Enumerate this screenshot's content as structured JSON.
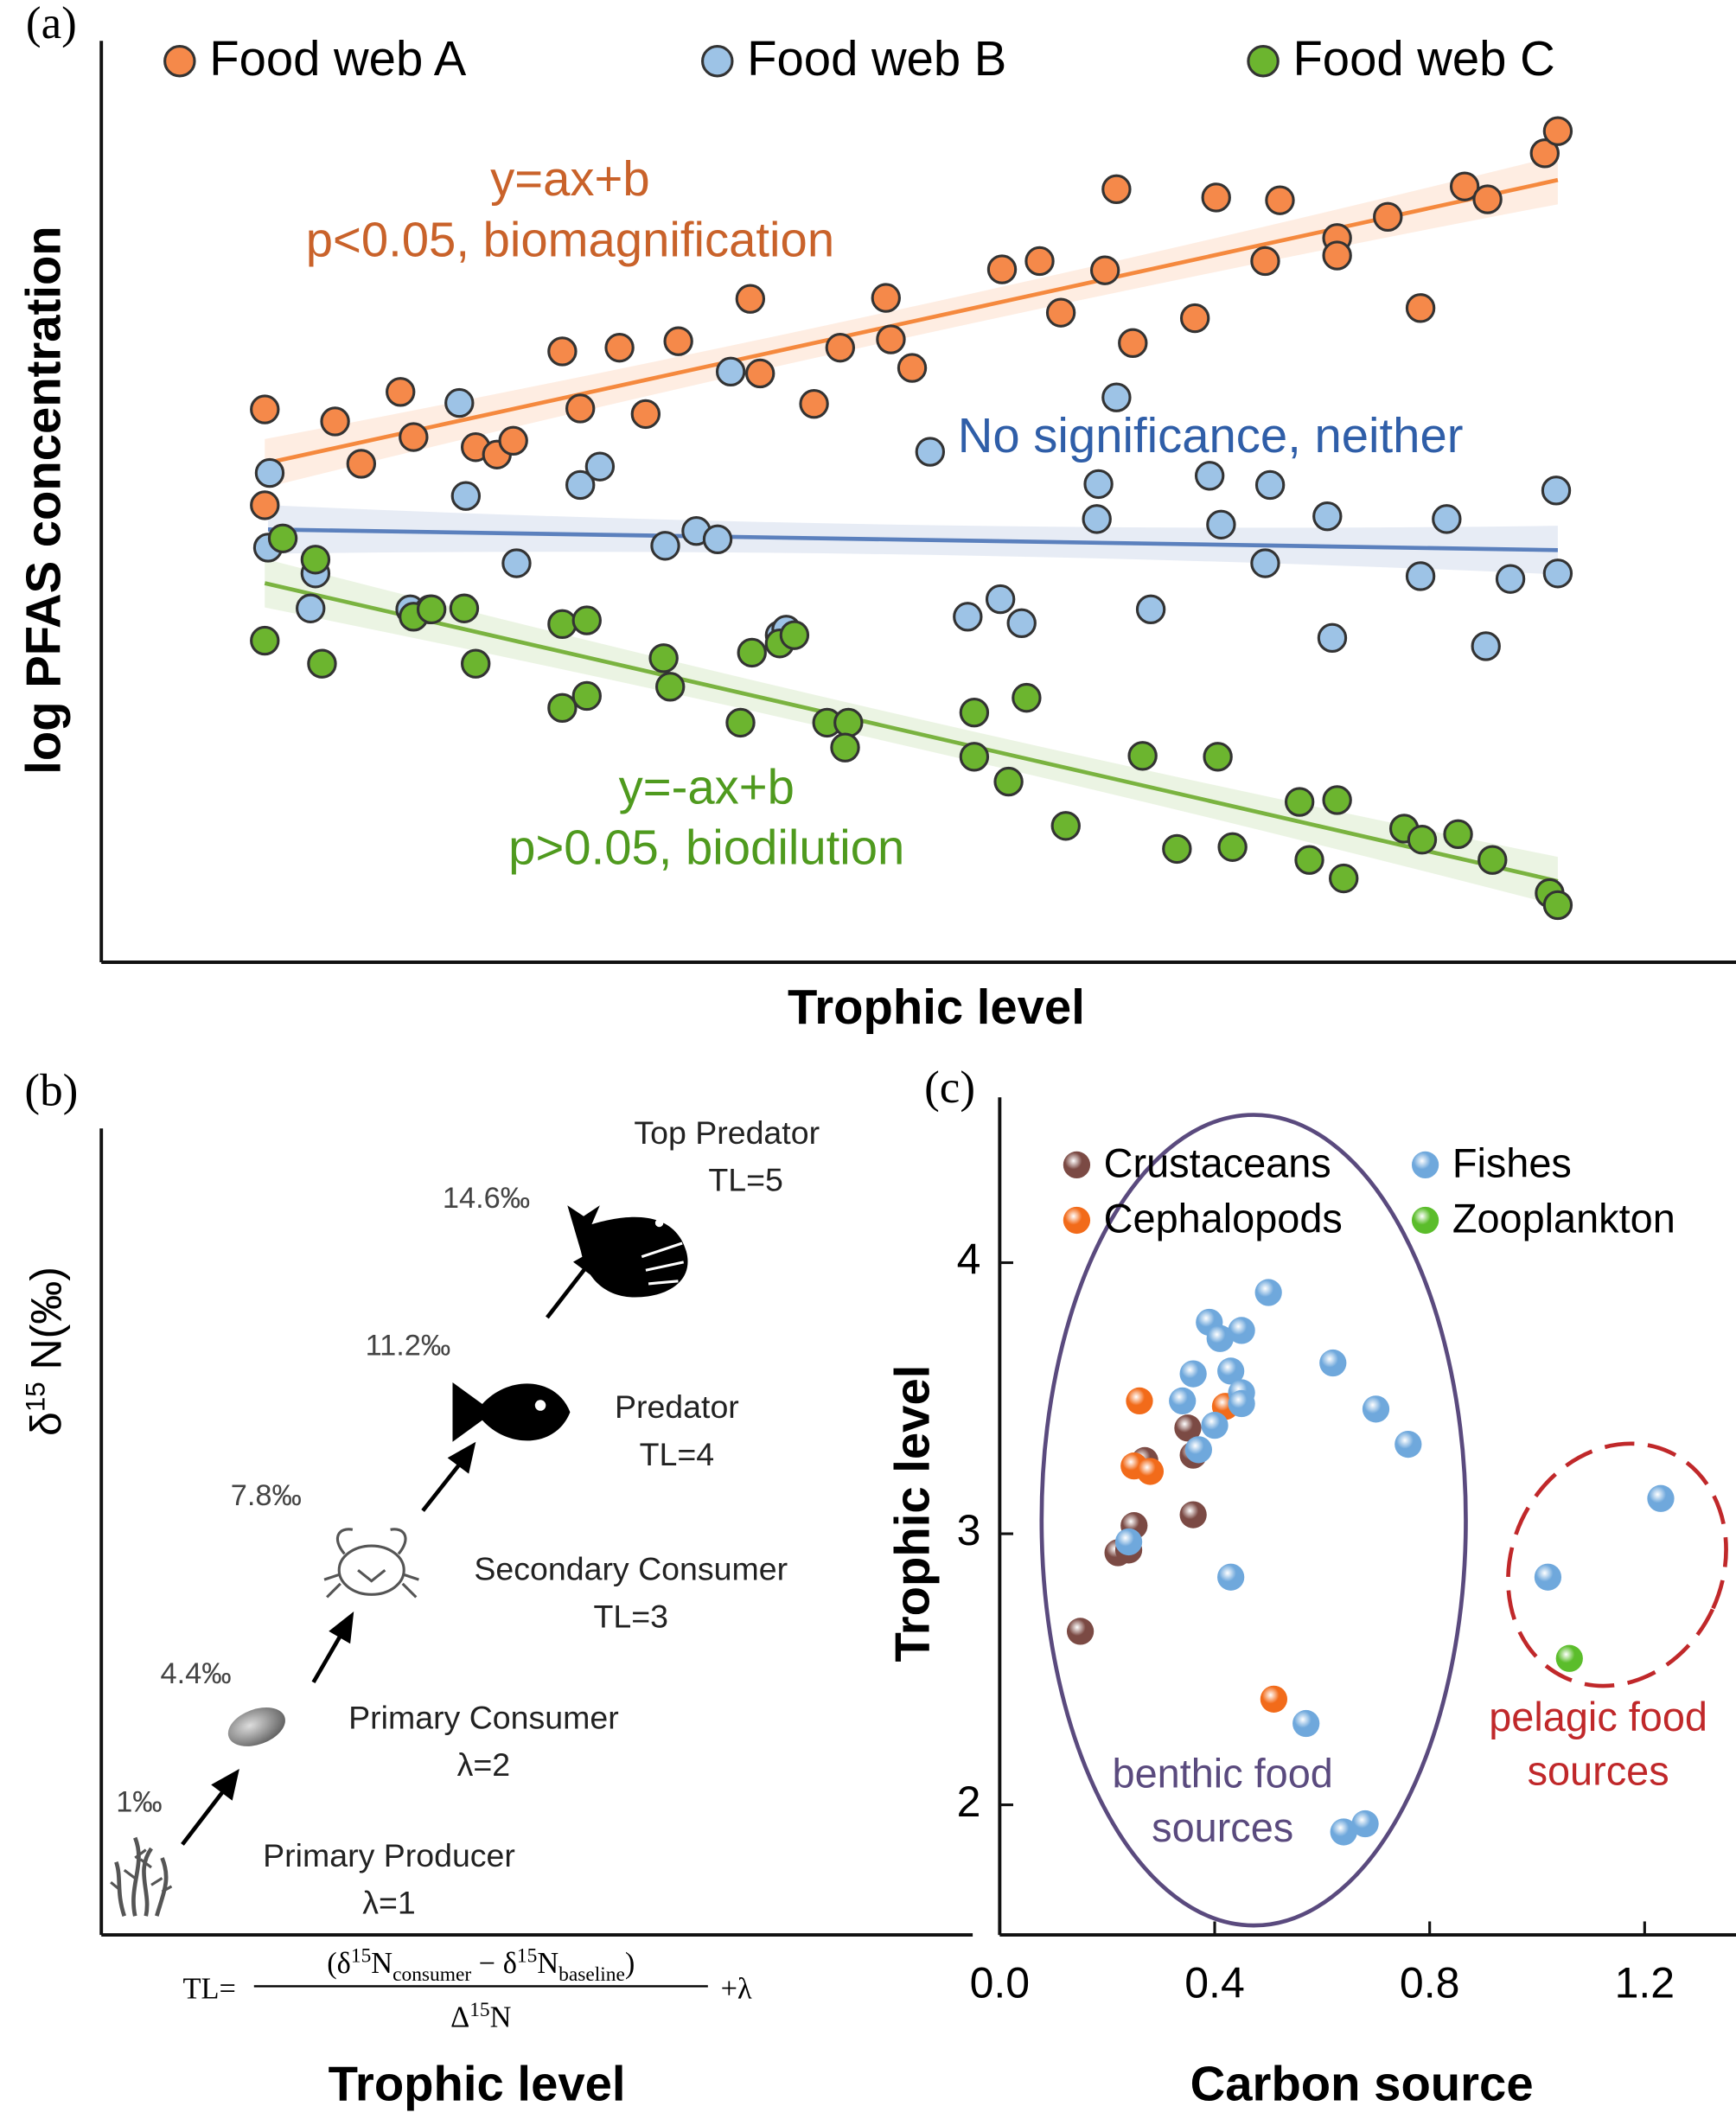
{
  "chart_data": [
    {
      "type": "scatter",
      "panel_label": "(a)",
      "x_label": "Trophic level",
      "y_label": "log PFAS concentration",
      "xlim": [
        0,
        100
      ],
      "ylim": [
        0,
        100
      ],
      "fit": true,
      "series": [
        {
          "name": "Food web A",
          "color": "#f5894a",
          "line_color": "#f5893e",
          "x": [
            10.0,
            10.0,
            14.3,
            15.9,
            18.3,
            19.1,
            22.9,
            24.2,
            25.2,
            28.2,
            29.3,
            31.7,
            33.3,
            35.3,
            39.7,
            40.3,
            43.6,
            45.2,
            48.0,
            48.3,
            49.6,
            55.1,
            57.4,
            58.7,
            61.4,
            62.1,
            63.1,
            66.9,
            68.2,
            71.2,
            72.1,
            75.6,
            75.6,
            78.7,
            80.7,
            83.4,
            84.8,
            88.3,
            89.1
          ],
          "values": [
            60.0,
            49.6,
            58.7,
            54.1,
            61.9,
            57.0,
            55.9,
            55.1,
            56.6,
            66.3,
            60.1,
            66.7,
            59.5,
            67.4,
            72.0,
            63.9,
            60.6,
            66.7,
            72.1,
            67.6,
            64.5,
            75.2,
            76.1,
            70.5,
            75.1,
            83.9,
            67.2,
            69.9,
            83.0,
            76.1,
            82.7,
            78.6,
            76.7,
            80.9,
            71.0,
            84.2,
            82.8,
            87.8,
            90.2
          ]
        },
        {
          "name": "Food web B",
          "color": "#9dc3e6",
          "line_color": "#5b80bd",
          "x": [
            10.3,
            10.2,
            13.1,
            12.8,
            18.9,
            20.1,
            21.9,
            22.3,
            25.4,
            29.3,
            30.5,
            34.5,
            36.4,
            37.7,
            38.5,
            41.5,
            41.9,
            50.7,
            53.0,
            55.0,
            56.3,
            60.9,
            61.0,
            62.1,
            64.2,
            67.8,
            68.5,
            71.2,
            71.5,
            75.0,
            75.3,
            80.7,
            82.3,
            84.7,
            86.2,
            89.0,
            89.1
          ],
          "values": [
            53.1,
            45.0,
            42.2,
            38.4,
            38.3,
            38.3,
            60.7,
            50.6,
            43.3,
            51.8,
            53.8,
            45.2,
            46.8,
            45.9,
            64.1,
            35.5,
            36.1,
            55.4,
            37.5,
            39.4,
            36.8,
            48.1,
            51.9,
            61.3,
            38.3,
            52.8,
            47.5,
            43.3,
            51.8,
            48.4,
            35.2,
            41.9,
            48.1,
            34.3,
            41.6,
            51.2,
            42.2
          ]
        },
        {
          "name": "Food web C",
          "color": "#6cb52f",
          "line_color": "#7ab340",
          "x": [
            10.0,
            11.1,
            13.1,
            13.5,
            19.1,
            20.2,
            22.2,
            22.9,
            28.2,
            28.2,
            29.7,
            29.7,
            34.4,
            34.8,
            39.1,
            39.8,
            41.5,
            42.4,
            44.4,
            45.7,
            45.5,
            53.4,
            53.4,
            55.5,
            56.6,
            59.0,
            63.7,
            65.8,
            68.3,
            69.2,
            73.3,
            73.9,
            75.6,
            76.0,
            79.7,
            80.8,
            83.0,
            85.1,
            88.6,
            89.1
          ],
          "values": [
            34.9,
            46.0,
            43.7,
            32.4,
            37.5,
            38.3,
            38.4,
            32.4,
            36.7,
            27.6,
            37.1,
            28.9,
            33.0,
            29.9,
            26.0,
            33.6,
            34.6,
            35.5,
            26.0,
            26.0,
            23.3,
            27.1,
            22.3,
            19.6,
            28.7,
            14.8,
            22.4,
            12.3,
            22.3,
            12.5,
            17.4,
            11.1,
            17.6,
            9.1,
            14.5,
            13.3,
            13.9,
            11.1,
            7.5,
            6.2
          ]
        }
      ],
      "annotations": [
        {
          "lines": [
            "y=ax+b",
            "p<0.05, biomagnification"
          ],
          "color": "#c9622a"
        },
        {
          "lines": [
            "No significance, neither"
          ],
          "color": "#2f5ea8"
        },
        {
          "lines": [
            "y=-ax+b",
            "p>0.05, biodilution"
          ],
          "color": "#4f9a1e"
        }
      ]
    },
    {
      "type": "scatter",
      "panel_label": "(c)",
      "x_label": "Carbon source",
      "y_label": "Trophic level",
      "xlim": [
        0,
        1.37
      ],
      "ylim": [
        1.52,
        4.61
      ],
      "xticks": [
        {
          "value": 0,
          "label": "0.0"
        },
        0.4,
        0.8,
        1.2
      ],
      "yticks": [
        2,
        3,
        4
      ],
      "series": [
        {
          "name": "Crustaceans",
          "color": "#7b4a44",
          "x": [
            0.15,
            0.22,
            0.24,
            0.25,
            0.27,
            0.35,
            0.36,
            0.36
          ],
          "values": [
            2.64,
            2.93,
            2.94,
            3.03,
            3.27,
            3.39,
            3.29,
            3.07
          ]
        },
        {
          "name": "Cephalopods",
          "color": "#f26b1a",
          "x": [
            0.26,
            0.25,
            0.28,
            0.42,
            0.51
          ],
          "values": [
            3.49,
            3.25,
            3.23,
            3.47,
            2.39
          ]
        },
        {
          "name": "Fishes",
          "color": "#6fa8dc",
          "x": [
            0.24,
            0.34,
            0.36,
            0.39,
            0.41,
            0.45,
            0.5,
            0.43,
            0.45,
            0.45,
            0.4,
            0.37,
            0.43,
            0.62,
            0.7,
            0.76,
            0.57,
            0.64,
            0.68,
            1.02,
            1.23
          ],
          "values": [
            2.97,
            3.49,
            3.59,
            3.78,
            3.72,
            3.75,
            3.89,
            3.6,
            3.52,
            3.48,
            3.4,
            3.31,
            2.84,
            3.63,
            3.46,
            3.33,
            2.3,
            1.9,
            1.93,
            2.84,
            3.13
          ]
        },
        {
          "name": "Zooplankton",
          "color": "#5bbd2b",
          "x": [
            1.06
          ],
          "values": [
            2.54
          ]
        }
      ],
      "regions": [
        {
          "lines": [
            "benthic food",
            "sources"
          ],
          "color": "#5a4a7e"
        },
        {
          "lines": [
            "pelagic food",
            "sources"
          ],
          "color": "#c0282a"
        }
      ]
    }
  ],
  "diagram": {
    "panel_label": "(b)",
    "y_label": {
      "symbol": "δ",
      "sup": "15",
      "main": " N(‰)"
    },
    "x_label": "Trophic level",
    "stages": [
      {
        "name": "Primary Producer",
        "level": "λ=1",
        "delta": "1‰"
      },
      {
        "name": "Primary Consumer",
        "level": "λ=2",
        "delta": "4.4‰"
      },
      {
        "name": "Secondary Consumer",
        "level": "TL=3",
        "delta": "7.8‰"
      },
      {
        "name": "Predator",
        "level": "TL=4",
        "delta": "11.2‰"
      },
      {
        "name": "Top Predator",
        "level": "TL=5",
        "delta": "14.6‰"
      }
    ],
    "formula": {
      "lhs": "TL=",
      "rhs": "+λ",
      "numerator": [
        {
          "t": "(δ"
        },
        {
          "t": "15",
          "s": "sup"
        },
        {
          "t": "N"
        },
        {
          "t": "consumer",
          "s": "sub"
        },
        {
          "t": " − δ"
        },
        {
          "t": "15",
          "s": "sup"
        },
        {
          "t": "N"
        },
        {
          "t": "baseline",
          "s": "sub"
        },
        {
          "t": ")"
        }
      ],
      "denominator": [
        {
          "t": "Δ"
        },
        {
          "t": "15",
          "s": "sup"
        },
        {
          "t": "N"
        }
      ]
    }
  }
}
